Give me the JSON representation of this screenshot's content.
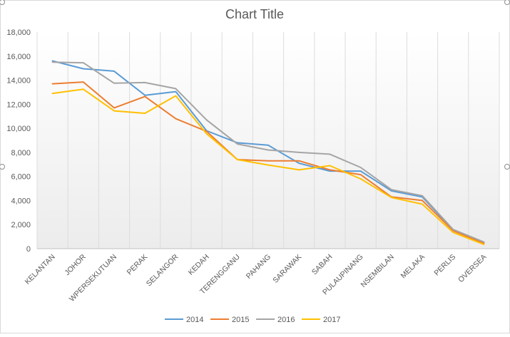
{
  "chart_data": {
    "type": "line",
    "title": "Chart Title",
    "xlabel": "",
    "ylabel": "",
    "ylim": [
      0,
      18000
    ],
    "yticks": [
      0,
      2000,
      4000,
      6000,
      8000,
      10000,
      12000,
      14000,
      16000,
      18000
    ],
    "ytick_labels": [
      "0",
      "2,000",
      "4,000",
      "6,000",
      "8,000",
      "10,000",
      "12,000",
      "14,000",
      "16,000",
      "18,000"
    ],
    "grid": "vertical",
    "legend_position": "bottom",
    "categories": [
      "KELANTAN",
      "JOHOR",
      "WPERSEKUTUAN",
      "PERAK",
      "SELANGOR",
      "KEDAH",
      "TERENGGANU",
      "PAHANG",
      "SARAWAK",
      "SABAH",
      "PULAUPINANG",
      "NSEMBILAN",
      "MELAKA",
      "PERLIS",
      "OVERSEA"
    ],
    "series": [
      {
        "name": "2014",
        "color": "#5B9BD5",
        "values": [
          15600,
          14950,
          14750,
          12750,
          13050,
          9800,
          8800,
          8600,
          7100,
          6450,
          6450,
          4800,
          4300,
          1550,
          500
        ]
      },
      {
        "name": "2015",
        "color": "#ED7D31",
        "values": [
          13700,
          13850,
          11700,
          12650,
          10800,
          9750,
          7400,
          7300,
          7300,
          6550,
          6150,
          4300,
          4000,
          1500,
          450
        ]
      },
      {
        "name": "2016",
        "color": "#A5A5A5",
        "values": [
          15500,
          15450,
          13750,
          13800,
          13300,
          10700,
          8700,
          8200,
          8000,
          7850,
          6750,
          4900,
          4400,
          1600,
          550
        ]
      },
      {
        "name": "2017",
        "color": "#FFC000",
        "values": [
          12900,
          13250,
          11450,
          11250,
          12700,
          9550,
          7400,
          6950,
          6550,
          6900,
          5800,
          4250,
          3700,
          1350,
          350
        ]
      }
    ]
  }
}
